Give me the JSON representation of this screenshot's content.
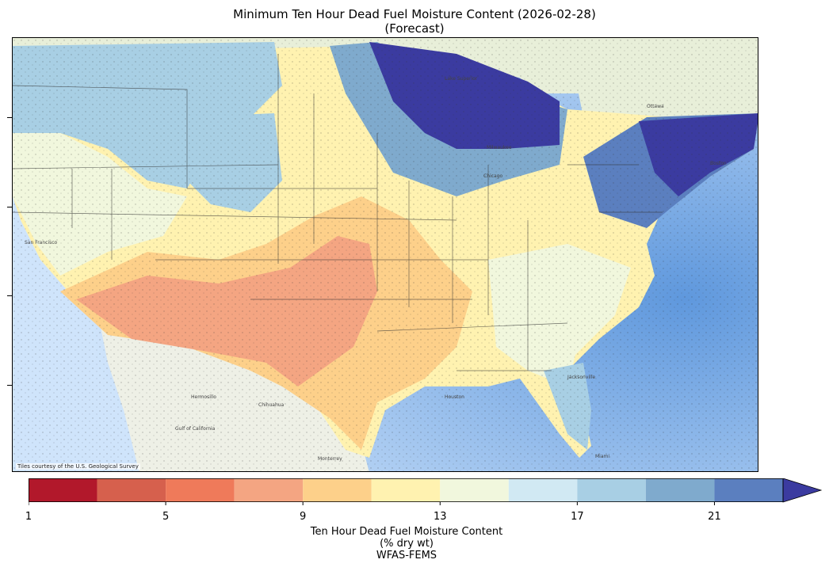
{
  "title": {
    "line1": "Minimum Ten Hour Dead Fuel Moisture Content (2026-02-28)",
    "line2": "(Forecast)"
  },
  "map": {
    "attribution": "Tiles courtesy of the U.S. Geological Survey",
    "labels": {
      "lake_superior": "Lake Superior",
      "ottawa": "Ottawa",
      "boston": "Boston",
      "chicago": "Chicago",
      "milwaukee": "Milwaukee",
      "san_francisco": "San Francisco",
      "houston": "Houston",
      "jacksonville": "Jacksonville",
      "miami": "Miami",
      "hermosillo": "Hermosillo",
      "chihuahua": "Chihuahua",
      "monterrey": "Monterrey",
      "gulf_of_california": "Gulf of California"
    }
  },
  "colorbar": {
    "label_line1": "Ten Hour Dead Fuel Moisture Content",
    "label_line2": "(% dry wt)",
    "label_line3": "WFAS-FEMS",
    "tick_labels": [
      "1",
      "5",
      "9",
      "13",
      "17",
      "21"
    ],
    "ticks": [
      1,
      5,
      9,
      13,
      17,
      21
    ],
    "range": [
      1,
      23
    ],
    "extend": "max",
    "levels": [
      {
        "from": 1,
        "to": 3,
        "color": "#b2182b"
      },
      {
        "from": 3,
        "to": 5,
        "color": "#d6604d"
      },
      {
        "from": 5,
        "to": 7,
        "color": "#ef7a5a"
      },
      {
        "from": 7,
        "to": 9,
        "color": "#f4a582"
      },
      {
        "from": 9,
        "to": 11,
        "color": "#fdd08a"
      },
      {
        "from": 11,
        "to": 13,
        "color": "#fff2b0"
      },
      {
        "from": 13,
        "to": 15,
        "color": "#f1f7dd"
      },
      {
        "from": 15,
        "to": 17,
        "color": "#d1e9f3"
      },
      {
        "from": 17,
        "to": 19,
        "color": "#a8cfe4"
      },
      {
        "from": 19,
        "to": 21,
        "color": "#7faacd"
      },
      {
        "from": 21,
        "to": 23,
        "color": "#5b7fbf"
      },
      {
        "from": 23,
        "to": null,
        "color": "#3b3ba0"
      }
    ]
  }
}
